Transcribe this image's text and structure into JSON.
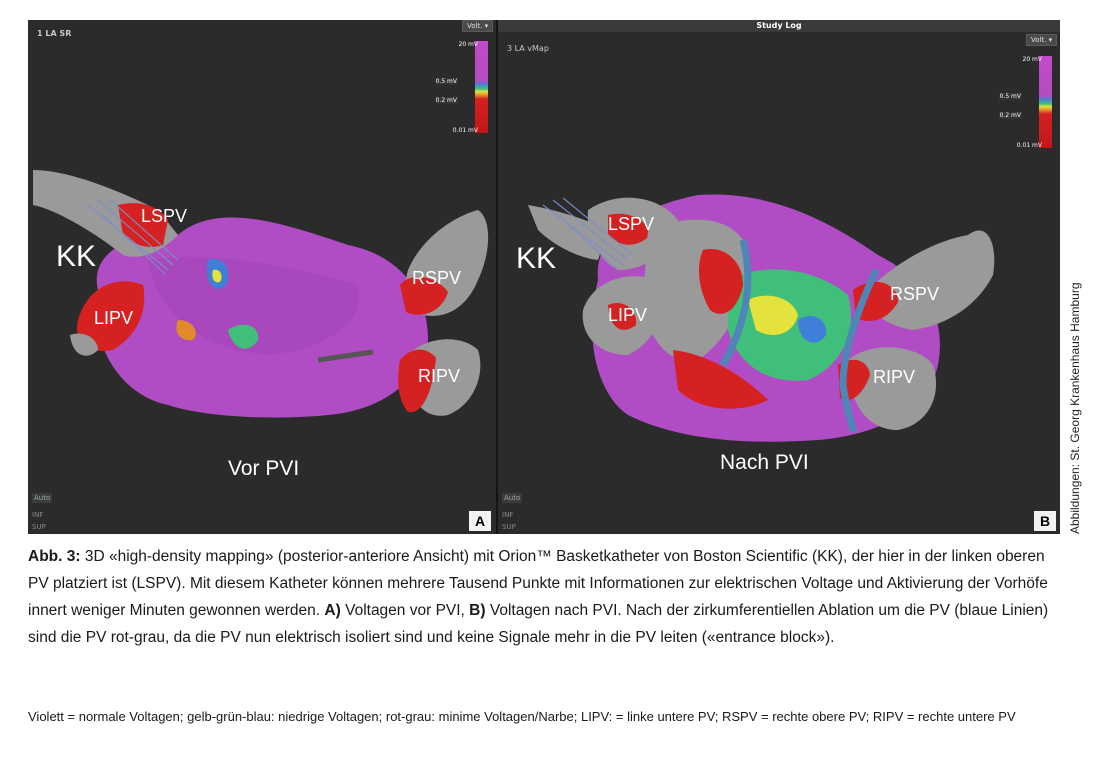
{
  "panel_a": {
    "title": "1 LA SR",
    "volt_button": "Volt. ▾",
    "scale": {
      "top": "20 mV",
      "mid1": "0.5 mV",
      "mid2": "0.2 mV",
      "bottom": "0.01 mV"
    },
    "labels": {
      "kk": "KK",
      "lspv": "LSPV",
      "lipv": "LIPV",
      "rspv": "RSPV",
      "ripv": "RIPV"
    },
    "caption_label": "Vor PVI",
    "side": {
      "auto": "Auto",
      "inf": "INF",
      "sup": "SUP"
    },
    "letter": "A"
  },
  "panel_b": {
    "header": "Study Log",
    "title": "3 LA vMap",
    "volt_button": "Volt. ▾",
    "scale": {
      "top": "20 mV",
      "mid1": "0.5 mV",
      "mid2": "0.2 mV",
      "bottom": "0.01 mV"
    },
    "labels": {
      "kk": "KK",
      "lspv": "LSPV",
      "lipv": "LIPV",
      "rspv": "RSPV",
      "ripv": "RIPV"
    },
    "caption_label": "Nach PVI",
    "side": {
      "auto": "Auto",
      "inf": "INF",
      "sup": "SUP"
    },
    "letter": "B"
  },
  "credit": "Abbildungen: St. Georg Krankenhaus Hamburg",
  "caption": {
    "fig_label": "Abb. 3:",
    "part1": " 3D «high-density mapping» (posterior-anteriore Ansicht) mit Orion™ Basketkatheter von Boston Scientific (KK), der hier in der linken oberen PV platziert ist (LSPV). Mit diesem Katheter können mehrere Tausend Punkte mit Informationen zur elektrischen Voltage und Aktivierung der Vorhöfe innert weniger Minuten gewonnen werden. ",
    "a_label": "A)",
    "part2": " Voltagen vor PVI, ",
    "b_label": "B)",
    "part3": " Voltagen nach PVI. Nach der zirkumferentiellen Ablation um die PV (blaue Linien) sind die PV rot-grau, da die PV nun elektrisch isoliert sind und keine Signale mehr in die PV leiten («entrance block»)."
  },
  "legend": "Violett = normale Voltagen; gelb-grün-blau: niedrige Voltagen; rot-grau: minime Voltagen/Narbe; LIPV: = linke untere PV; RSPV = rechte obere PV; RIPV = rechte untere PV",
  "colors": {
    "normal_voltage": "#b14dc4",
    "low_voltage_blue": "#3f7fd8",
    "scar_red": "#d52121",
    "scar_grey": "#9a9a9a",
    "ablation_line": "#4f86b8"
  }
}
